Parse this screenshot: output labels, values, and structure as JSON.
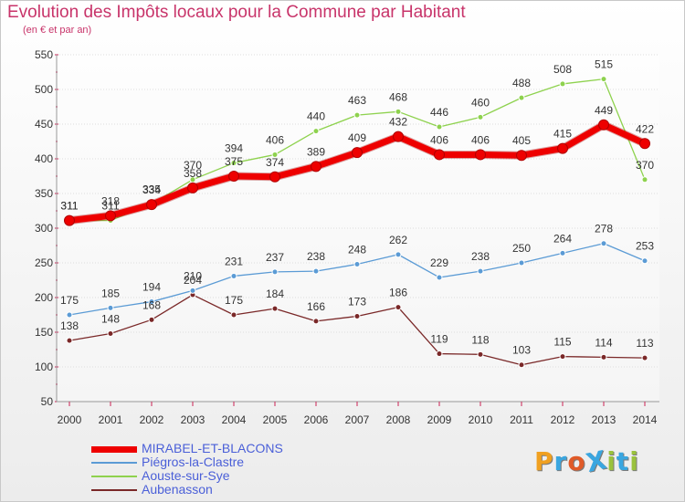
{
  "title": "Evolution des Impôts locaux pour la Commune par Habitant",
  "subtitle": "(en € et par an)",
  "brand": {
    "text": "ProXiti",
    "letters": [
      "P",
      "r",
      "o",
      "X",
      "i",
      "t",
      "i"
    ],
    "colors": [
      "#f0a020",
      "#3aa6e0",
      "#e05a28",
      "#3aa6e0",
      "#9ac23c",
      "#3aa6e0",
      "#9ac23c"
    ]
  },
  "chart_data": {
    "type": "line",
    "title": "Evolution des Impôts locaux pour la Commune par Habitant",
    "subtitle": "(en € et par an)",
    "xlabel": "",
    "ylabel": "",
    "categories": [
      "2000",
      "2001",
      "2002",
      "2003",
      "2004",
      "2005",
      "2006",
      "2007",
      "2008",
      "2009",
      "2010",
      "2011",
      "2012",
      "2013",
      "2014"
    ],
    "y_ticks": [
      50,
      100,
      150,
      200,
      250,
      300,
      350,
      400,
      450,
      500,
      550
    ],
    "ylim": [
      50,
      550
    ],
    "grid": "horizontal",
    "legend_position": "bottom-left",
    "series": [
      {
        "name": "MIRABEL-ET-BLACONS",
        "color": "#ee0000",
        "values": [
          311,
          318,
          334,
          358,
          375,
          374,
          389,
          409,
          432,
          406,
          406,
          405,
          415,
          449,
          422
        ]
      },
      {
        "name": "Piégros-la-Clastre",
        "color": "#5b9bd5",
        "values": [
          175,
          185,
          194,
          210,
          231,
          237,
          238,
          248,
          262,
          229,
          238,
          250,
          264,
          278,
          253
        ]
      },
      {
        "name": "Aouste-sur-Sye",
        "color": "#8ed24e",
        "values": [
          311,
          311,
          335,
          370,
          394,
          406,
          440,
          463,
          468,
          446,
          460,
          488,
          508,
          515,
          370
        ]
      },
      {
        "name": "Aubenasson",
        "color": "#7a2828",
        "values": [
          138,
          148,
          168,
          204,
          175,
          184,
          166,
          173,
          186,
          119,
          118,
          103,
          115,
          114,
          113
        ]
      }
    ]
  }
}
